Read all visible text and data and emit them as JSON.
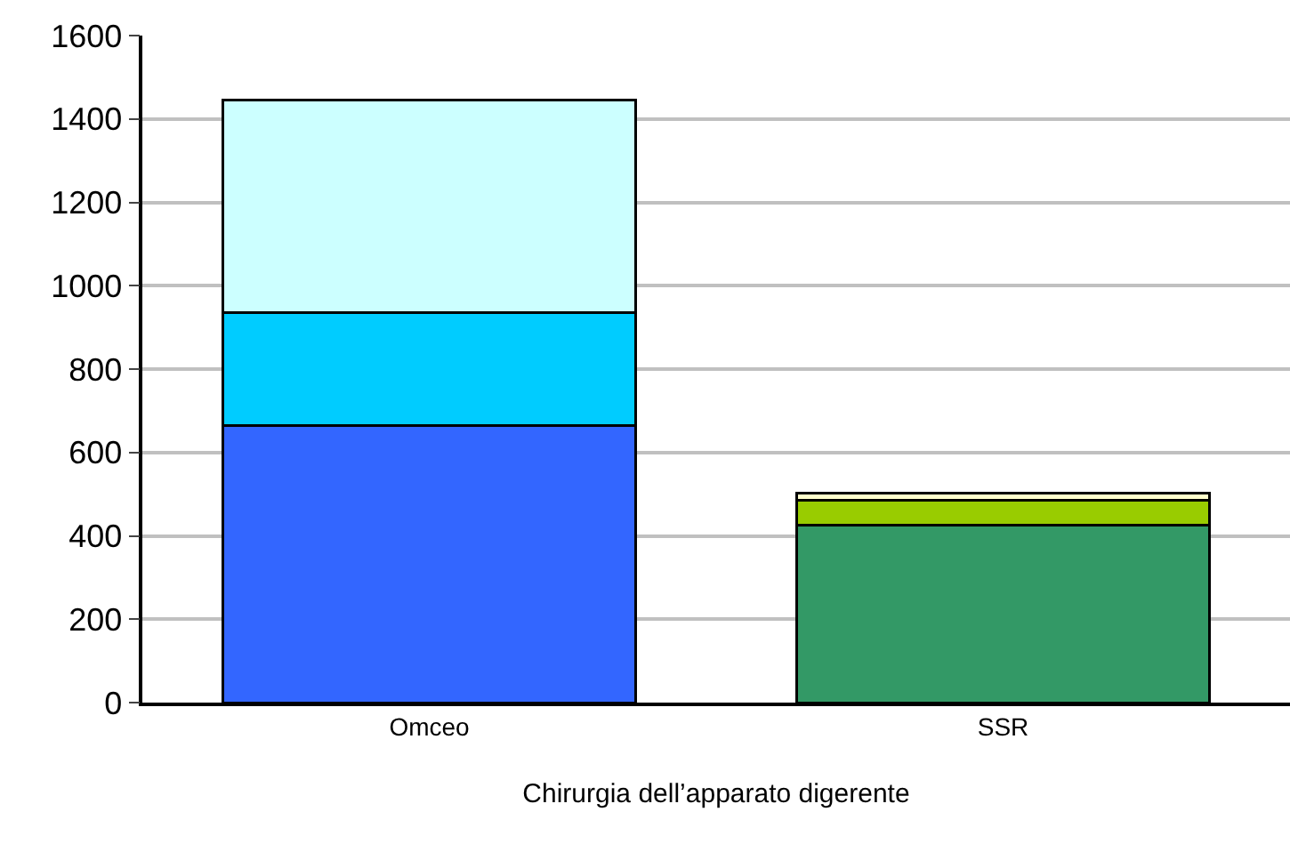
{
  "chart_data": {
    "type": "bar",
    "stacked": true,
    "categories": [
      "Omceo",
      "SSR"
    ],
    "xlabel": "Chirurgia dell’apparato digerente",
    "series": [
      {
        "colors": [
          "#3366ff",
          "#339966"
        ],
        "values": [
          665,
          425
        ]
      },
      {
        "colors": [
          "#00ccff",
          "#99cc00"
        ],
        "values": [
          270,
          60
        ]
      },
      {
        "colors": [
          "#ccffff",
          "#ffffcc"
        ],
        "values": [
          510,
          18
        ]
      }
    ],
    "ylim": [
      0,
      1600
    ],
    "yticks": [
      0,
      200,
      400,
      600,
      800,
      1000,
      1200,
      1400,
      1600
    ],
    "grid": "y"
  }
}
